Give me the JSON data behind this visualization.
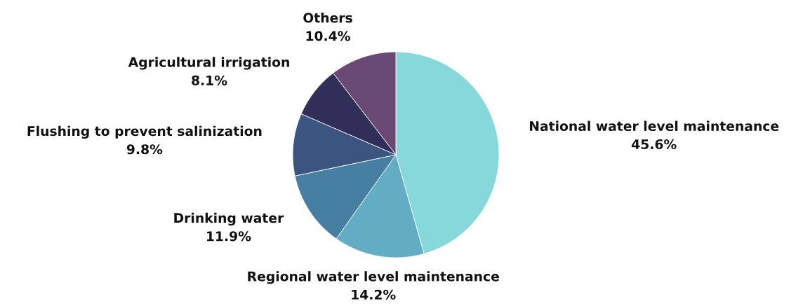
{
  "chart_data": {
    "type": "pie",
    "categories": [
      "National water level maintenance",
      "Regional water level maintenance",
      "Drinking water",
      "Flushing to prevent salinization",
      "Agricultural irrigation",
      "Others"
    ],
    "values": [
      45.6,
      14.2,
      11.9,
      9.8,
      8.1,
      10.4
    ],
    "colors": [
      "#87d8db",
      "#62acc4",
      "#477fa3",
      "#3c5580",
      "#312e59",
      "#6a4a75"
    ],
    "value_labels": [
      "45.6%",
      "14.2%",
      "11.9%",
      "9.8%",
      "8.1%",
      "10.4%"
    ]
  }
}
